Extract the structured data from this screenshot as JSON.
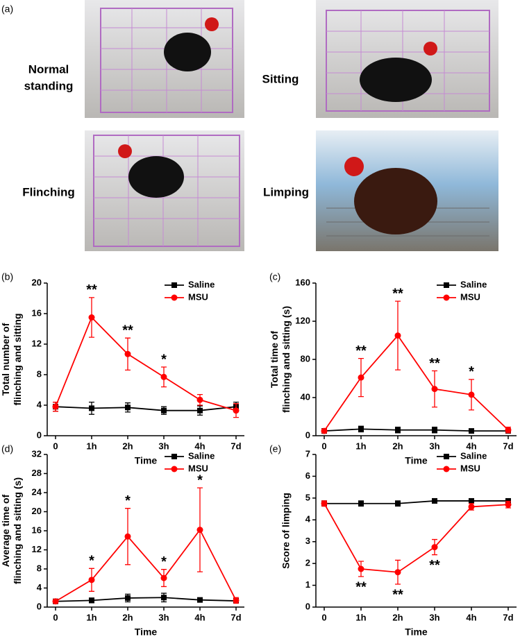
{
  "panel_a": {
    "label": "(a)",
    "captions": [
      [
        "Normal",
        "standing"
      ],
      [
        "Sitting"
      ],
      [
        "Flinching"
      ],
      [
        "Limping"
      ]
    ]
  },
  "chart_data": [
    {
      "type": "line",
      "panel": "(b)",
      "xlabel": "Time",
      "ylabel": [
        "Total number of",
        "flinching and sitting"
      ],
      "categories": [
        "0",
        "1h",
        "2h",
        "3h",
        "4h",
        "7d"
      ],
      "ylim": [
        0,
        20
      ],
      "yticks": [
        0,
        4,
        8,
        12,
        16,
        20
      ],
      "legend": "upper right",
      "series": [
        {
          "name": "Saline",
          "color": "#000000",
          "marker": "square",
          "values": [
            3.8,
            3.6,
            3.7,
            3.3,
            3.3,
            3.8
          ],
          "errors": [
            0.6,
            0.8,
            0.6,
            0.5,
            0.6,
            0.6
          ]
        },
        {
          "name": "MSU",
          "color": "#ff0000",
          "marker": "circle",
          "values": [
            3.8,
            15.5,
            10.7,
            7.7,
            4.7,
            3.3
          ],
          "errors": [
            0.6,
            2.6,
            2.1,
            1.3,
            0.7,
            0.9
          ]
        }
      ],
      "annotations": [
        {
          "at": "1h",
          "text": "**"
        },
        {
          "at": "2h",
          "text": "**"
        },
        {
          "at": "3h",
          "text": "*"
        }
      ]
    },
    {
      "type": "line",
      "panel": "(c)",
      "xlabel": "Time",
      "ylabel": [
        "Total time of",
        "flinching and sitting (s)"
      ],
      "categories": [
        "0",
        "1h",
        "2h",
        "3h",
        "4h",
        "7d"
      ],
      "ylim": [
        0,
        160
      ],
      "yticks": [
        0,
        40,
        80,
        120,
        160
      ],
      "legend": "upper right",
      "series": [
        {
          "name": "Saline",
          "color": "#000000",
          "marker": "square",
          "values": [
            5,
            7,
            6,
            6,
            5,
            5
          ],
          "errors": [
            2,
            3,
            3,
            3,
            2,
            2
          ]
        },
        {
          "name": "MSU",
          "color": "#ff0000",
          "marker": "circle",
          "values": [
            5,
            61,
            105,
            49,
            43,
            6
          ],
          "errors": [
            2,
            20,
            36,
            19,
            16,
            3
          ]
        }
      ],
      "annotations": [
        {
          "at": "1h",
          "text": "**"
        },
        {
          "at": "2h",
          "text": "**"
        },
        {
          "at": "3h",
          "text": "**"
        },
        {
          "at": "4h",
          "text": "*"
        }
      ]
    },
    {
      "type": "line",
      "panel": "(d)",
      "xlabel": "Time",
      "ylabel": [
        "Average time of",
        "flinching and sitting (s)"
      ],
      "categories": [
        "0",
        "1h",
        "2h",
        "3h",
        "4h",
        "7d"
      ],
      "ylim": [
        0,
        32
      ],
      "yticks": [
        0,
        4,
        8,
        12,
        16,
        20,
        24,
        28,
        32
      ],
      "legend": "upper right",
      "series": [
        {
          "name": "Saline",
          "color": "#000000",
          "marker": "square",
          "values": [
            1.2,
            1.4,
            1.9,
            2.0,
            1.5,
            1.3
          ],
          "errors": [
            0.4,
            0.5,
            0.8,
            0.9,
            0.4,
            0.4
          ]
        },
        {
          "name": "MSU",
          "color": "#ff0000",
          "marker": "circle",
          "values": [
            1.2,
            5.7,
            14.8,
            6.1,
            16.2,
            1.4
          ],
          "errors": [
            0.4,
            2.4,
            5.9,
            1.8,
            8.8,
            0.6
          ]
        }
      ],
      "annotations": [
        {
          "at": "1h",
          "text": "*"
        },
        {
          "at": "2h",
          "text": "*"
        },
        {
          "at": "3h",
          "text": "*"
        },
        {
          "at": "4h",
          "text": "*"
        }
      ]
    },
    {
      "type": "line",
      "panel": "(e)",
      "xlabel": "Time",
      "ylabel": [
        "Score of limping"
      ],
      "categories": [
        "0",
        "1h",
        "2h",
        "3h",
        "4h",
        "7d"
      ],
      "ylim": [
        0,
        7
      ],
      "yticks": [
        0,
        1,
        2,
        3,
        4,
        5,
        6,
        7
      ],
      "legend": "upper right",
      "series": [
        {
          "name": "Saline",
          "color": "#000000",
          "marker": "square",
          "values": [
            4.75,
            4.75,
            4.75,
            4.87,
            4.87,
            4.87
          ],
          "errors": [
            0.12,
            0.12,
            0.12,
            0.1,
            0.1,
            0.1
          ]
        },
        {
          "name": "MSU",
          "color": "#ff0000",
          "marker": "circle",
          "values": [
            4.75,
            1.75,
            1.6,
            2.75,
            4.6,
            4.7
          ],
          "errors": [
            0.12,
            0.35,
            0.55,
            0.35,
            0.15,
            0.15
          ]
        }
      ],
      "annotations": [
        {
          "at": "1h",
          "text": "**",
          "below": true
        },
        {
          "at": "2h",
          "text": "**",
          "below": true
        },
        {
          "at": "3h",
          "text": "**",
          "below": true
        }
      ]
    }
  ]
}
